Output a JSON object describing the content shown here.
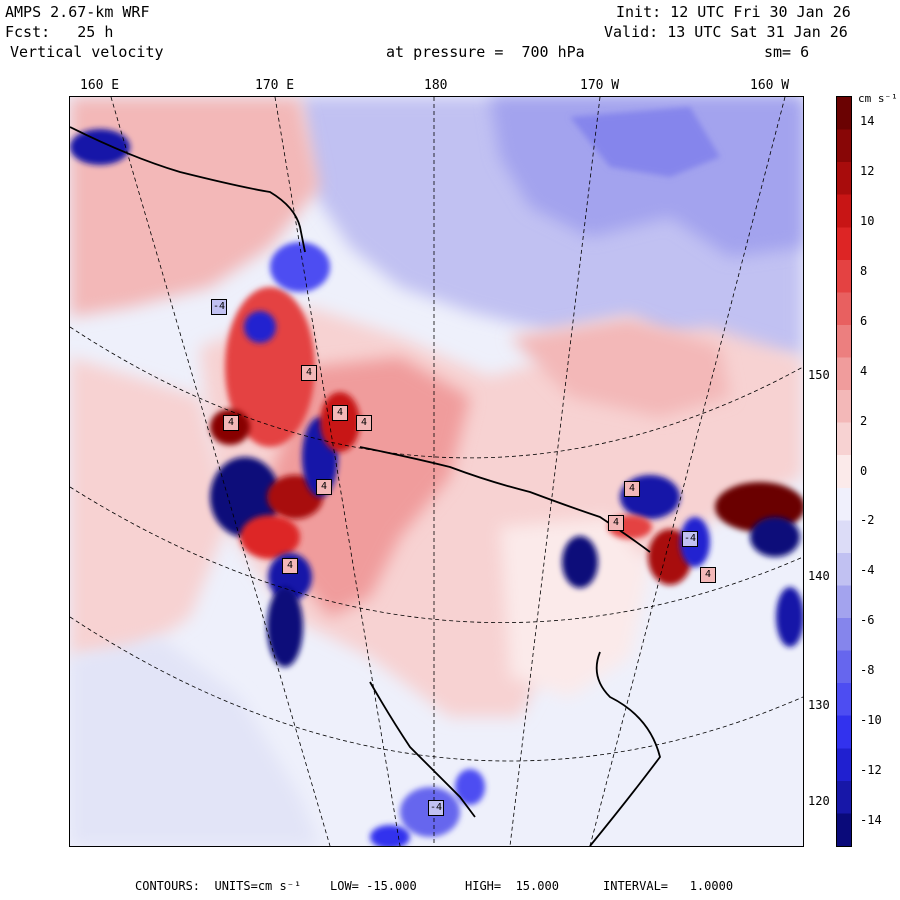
{
  "header": {
    "model": "AMPS 2.67-km WRF",
    "init": "Init: 12 UTC Fri 30 Jan 26",
    "fcst": "Fcst:   25 h",
    "valid": "Valid: 13 UTC Sat 31 Jan 26",
    "field": "Vertical velocity",
    "level": "at pressure =  700 hPa",
    "smoothing": "sm= 6"
  },
  "longitude_labels": [
    "160 E",
    "170 E",
    "180",
    "170 W",
    "160 W"
  ],
  "latitude_labels": [
    "150 W",
    "140 W",
    "130 W",
    "120 W"
  ],
  "colorbar": {
    "unit": "cm s⁻¹",
    "ticks": [
      "14",
      "12",
      "10",
      "8",
      "6",
      "4",
      "2",
      "0",
      "-2",
      "-4",
      "-6",
      "-8",
      "-10",
      "-12",
      "-14"
    ],
    "colors": [
      "#0a0a7a",
      "#1717a8",
      "#2020d0",
      "#3232ee",
      "#4d4df2",
      "#6666ee",
      "#8585ec",
      "#a3a3ee",
      "#c1c1f2",
      "#dcdcf7",
      "#f0f0fc",
      "#fbeaea",
      "#f7d2d2",
      "#f3b8b8",
      "#f09c9c",
      "#ec7f7f",
      "#e86060",
      "#e44242",
      "#dd2525",
      "#c81515",
      "#a80c0c",
      "#880606",
      "#6a0202"
    ]
  },
  "contour_labels": [
    {
      "text": "-4",
      "kind": "neg"
    },
    {
      "text": "4",
      "kind": "pos"
    },
    {
      "text": "4",
      "kind": "pos"
    },
    {
      "text": "4",
      "kind": "pos"
    },
    {
      "text": "4",
      "kind": "pos"
    },
    {
      "text": "4",
      "kind": "pos"
    },
    {
      "text": "4",
      "kind": "pos"
    },
    {
      "text": "4",
      "kind": "pos"
    },
    {
      "text": "4",
      "kind": "pos"
    },
    {
      "text": "4",
      "kind": "pos"
    },
    {
      "text": "-4",
      "kind": "neg"
    },
    {
      "text": "-4",
      "kind": "neg"
    }
  ],
  "footer": {
    "contours": "CONTOURS:  UNITS=cm s⁻¹",
    "low": "LOW= -15.000",
    "high": "HIGH=  15.000",
    "interval": "INTERVAL=   1.0000"
  }
}
